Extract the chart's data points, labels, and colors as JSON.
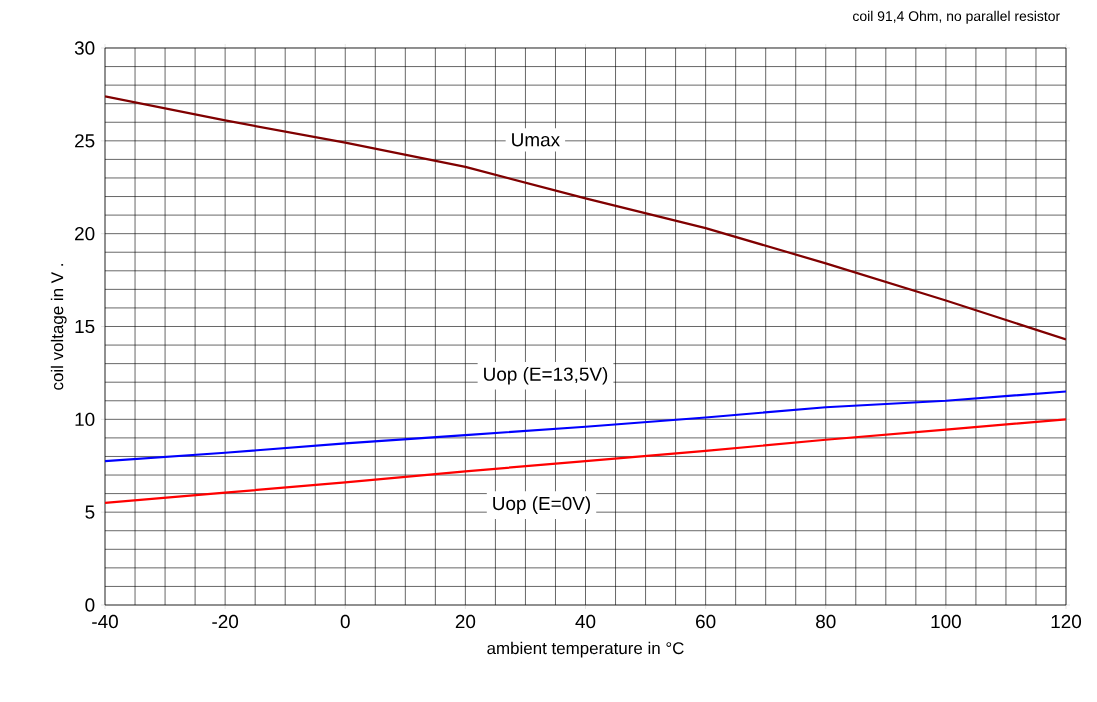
{
  "chart_data": {
    "type": "line",
    "xlabel": "ambient temperature in °C",
    "ylabel": "coil voltage in V .",
    "annotations": [
      "coil 91,4 Ohm, no parallel resistor"
    ],
    "x": [
      -40,
      -20,
      0,
      20,
      40,
      60,
      80,
      100,
      120
    ],
    "series": [
      {
        "name": "Umax",
        "color": "#800000",
        "values": [
          27.4,
          26.1,
          24.9,
          23.6,
          21.9,
          20.3,
          18.4,
          16.4,
          14.3
        ]
      },
      {
        "name": "Uop (E=13,5V)",
        "color": "#0000ff",
        "values": [
          7.75,
          8.2,
          8.7,
          9.15,
          9.6,
          10.1,
          10.65,
          11.0,
          11.5
        ]
      },
      {
        "name": "Uop (E=0V)",
        "color": "#ff0000",
        "values": [
          5.5,
          6.05,
          6.6,
          7.2,
          7.75,
          8.3,
          8.9,
          9.45,
          10.0
        ]
      }
    ],
    "xlim": [
      -40,
      120
    ],
    "ylim": [
      0,
      30
    ],
    "xticks": [
      -40,
      -20,
      0,
      20,
      40,
      60,
      80,
      100,
      120
    ],
    "yticks": [
      0,
      5,
      10,
      15,
      20,
      25,
      30
    ],
    "grid": true
  }
}
